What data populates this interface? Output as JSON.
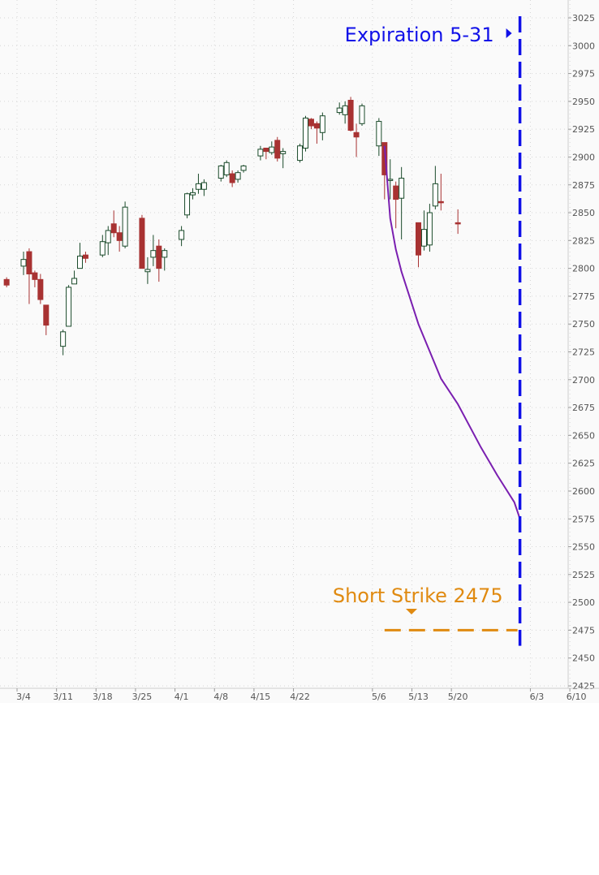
{
  "chart_data": {
    "type": "candlestick",
    "grid": true,
    "ylim": [
      2425,
      3025
    ],
    "y_ticks": [
      3025,
      3000,
      2975,
      2950,
      2925,
      2900,
      2875,
      2850,
      2825,
      2800,
      2775,
      2750,
      2725,
      2700,
      2675,
      2650,
      2625,
      2600,
      2575,
      2550,
      2525,
      2500,
      2475,
      2450,
      2425
    ],
    "x_tick_labels": [
      "3/4",
      "3/11",
      "3/18",
      "3/25",
      "4/1",
      "4/8",
      "4/15",
      "4/22",
      "5/6",
      "5/13",
      "5/20",
      "6/3",
      "6/10"
    ],
    "colors": {
      "up_candle": "#1a4a2a",
      "down_candle": "#a83232",
      "projection": "#7a1fb0",
      "expiration": "#1010e8",
      "short_strike": "#e08a10",
      "grid": "#d6d6d6"
    },
    "candles": [
      {
        "date": "3/1",
        "open": 2790,
        "high": 2792,
        "low": 2783,
        "close": 2785
      },
      {
        "date": "3/4",
        "open": 2802,
        "high": 2815,
        "low": 2794,
        "close": 2808
      },
      {
        "date": "3/5",
        "open": 2815,
        "high": 2818,
        "low": 2768,
        "close": 2795
      },
      {
        "date": "3/6",
        "open": 2796,
        "high": 2798,
        "low": 2783,
        "close": 2790
      },
      {
        "date": "3/7",
        "open": 2790,
        "high": 2795,
        "low": 2768,
        "close": 2772
      },
      {
        "date": "3/8",
        "open": 2767,
        "high": 2767,
        "low": 2740,
        "close": 2749
      },
      {
        "date": "3/11",
        "open": 2730,
        "high": 2745,
        "low": 2722,
        "close": 2743
      },
      {
        "date": "3/12",
        "open": 2748,
        "high": 2785,
        "low": 2748,
        "close": 2783
      },
      {
        "date": "3/13",
        "open": 2786,
        "high": 2798,
        "low": 2786,
        "close": 2791
      },
      {
        "date": "3/14",
        "open": 2800,
        "high": 2823,
        "low": 2800,
        "close": 2811
      },
      {
        "date": "3/15",
        "open": 2812,
        "high": 2815,
        "low": 2805,
        "close": 2809
      },
      {
        "date": "3/18",
        "open": 2812,
        "high": 2830,
        "low": 2810,
        "close": 2824
      },
      {
        "date": "3/19",
        "open": 2823,
        "high": 2838,
        "low": 2812,
        "close": 2834
      },
      {
        "date": "3/20",
        "open": 2840,
        "high": 2852,
        "low": 2828,
        "close": 2832
      },
      {
        "date": "3/21",
        "open": 2832,
        "high": 2838,
        "low": 2815,
        "close": 2825
      },
      {
        "date": "3/22",
        "open": 2820,
        "high": 2860,
        "low": 2818,
        "close": 2855
      },
      {
        "date": "3/25",
        "open": 2845,
        "high": 2848,
        "low": 2800,
        "close": 2800
      },
      {
        "date": "3/26",
        "open": 2797,
        "high": 2810,
        "low": 2786,
        "close": 2799
      },
      {
        "date": "3/27",
        "open": 2810,
        "high": 2830,
        "low": 2802,
        "close": 2816
      },
      {
        "date": "3/28",
        "open": 2820,
        "high": 2826,
        "low": 2788,
        "close": 2800
      },
      {
        "date": "3/29",
        "open": 2810,
        "high": 2818,
        "low": 2798,
        "close": 2816
      },
      {
        "date": "4/1",
        "open": 2826,
        "high": 2838,
        "low": 2820,
        "close": 2834
      },
      {
        "date": "4/2",
        "open": 2848,
        "high": 2868,
        "low": 2845,
        "close": 2867
      },
      {
        "date": "4/3",
        "open": 2866,
        "high": 2872,
        "low": 2862,
        "close": 2868
      },
      {
        "date": "4/4",
        "open": 2871,
        "high": 2885,
        "low": 2867,
        "close": 2876
      },
      {
        "date": "4/5",
        "open": 2871,
        "high": 2880,
        "low": 2865,
        "close": 2877
      },
      {
        "date": "4/8",
        "open": 2881,
        "high": 2893,
        "low": 2878,
        "close": 2892
      },
      {
        "date": "4/9",
        "open": 2884,
        "high": 2897,
        "low": 2882,
        "close": 2895
      },
      {
        "date": "4/10",
        "open": 2885,
        "high": 2888,
        "low": 2873,
        "close": 2877
      },
      {
        "date": "4/11",
        "open": 2880,
        "high": 2888,
        "low": 2877,
        "close": 2886
      },
      {
        "date": "4/12",
        "open": 2888,
        "high": 2893,
        "low": 2886,
        "close": 2892
      },
      {
        "date": "4/15",
        "open": 2901,
        "high": 2910,
        "low": 2897,
        "close": 2907
      },
      {
        "date": "4/16",
        "open": 2908,
        "high": 2908,
        "low": 2898,
        "close": 2905
      },
      {
        "date": "4/17",
        "open": 2904,
        "high": 2914,
        "low": 2902,
        "close": 2909
      },
      {
        "date": "4/18",
        "open": 2915,
        "high": 2918,
        "low": 2896,
        "close": 2899
      },
      {
        "date": "4/19",
        "open": 2903,
        "high": 2908,
        "low": 2890,
        "close": 2905
      },
      {
        "date": "4/22",
        "open": 2897,
        "high": 2912,
        "low": 2895,
        "close": 2910
      },
      {
        "date": "4/23",
        "open": 2908,
        "high": 2937,
        "low": 2905,
        "close": 2935
      },
      {
        "date": "4/24",
        "open": 2934,
        "high": 2935,
        "low": 2925,
        "close": 2928
      },
      {
        "date": "4/25",
        "open": 2930,
        "high": 2932,
        "low": 2912,
        "close": 2926
      },
      {
        "date": "4/26",
        "open": 2922,
        "high": 2940,
        "low": 2915,
        "close": 2937
      },
      {
        "date": "4/29",
        "open": 2940,
        "high": 2949,
        "low": 2938,
        "close": 2944
      },
      {
        "date": "4/30",
        "open": 2938,
        "high": 2950,
        "low": 2930,
        "close": 2946
      },
      {
        "date": "5/1",
        "open": 2951,
        "high": 2954,
        "low": 2923,
        "close": 2924
      },
      {
        "date": "5/2",
        "open": 2922,
        "high": 2930,
        "low": 2900,
        "close": 2918
      },
      {
        "date": "5/3",
        "open": 2930,
        "high": 2948,
        "low": 2928,
        "close": 2946
      },
      {
        "date": "5/6",
        "open": 2910,
        "high": 2935,
        "low": 2901,
        "close": 2932
      },
      {
        "date": "5/7",
        "open": 2913,
        "high": 2913,
        "low": 2862,
        "close": 2884
      },
      {
        "date": "5/8",
        "open": 2880,
        "high": 2898,
        "low": 2862,
        "close": 2880
      },
      {
        "date": "5/9",
        "open": 2874,
        "high": 2878,
        "low": 2836,
        "close": 2862
      },
      {
        "date": "5/10",
        "open": 2863,
        "high": 2891,
        "low": 2826,
        "close": 2881
      },
      {
        "date": "5/13",
        "open": 2841,
        "high": 2841,
        "low": 2801,
        "close": 2812
      },
      {
        "date": "5/14",
        "open": 2820,
        "high": 2852,
        "low": 2816,
        "close": 2835
      },
      {
        "date": "5/15",
        "open": 2821,
        "high": 2858,
        "low": 2815,
        "close": 2850
      },
      {
        "date": "5/16",
        "open": 2856,
        "high": 2892,
        "low": 2853,
        "close": 2876
      },
      {
        "date": "5/17",
        "open": 2860,
        "high": 2885,
        "low": 2852,
        "close": 2859
      },
      {
        "date": "5/20",
        "open": 2841,
        "high": 2853,
        "low": 2831,
        "close": 2840
      }
    ],
    "projection_path": [
      {
        "x": "5/7",
        "y": 2910
      },
      {
        "x": "5/8",
        "y": 2845
      },
      {
        "x": "5/9",
        "y": 2817
      },
      {
        "x": "5/10",
        "y": 2797
      },
      {
        "x": "5/13",
        "y": 2750
      },
      {
        "x": "5/17",
        "y": 2701
      },
      {
        "x": "5/20",
        "y": 2678
      },
      {
        "x": "5/24",
        "y": 2640
      },
      {
        "x": "5/27",
        "y": 2614
      },
      {
        "x": "5/30",
        "y": 2590
      },
      {
        "x": "5/31",
        "y": 2575
      }
    ],
    "expiration_line": {
      "x": "5/31",
      "label": "Expiration 5-31"
    },
    "short_strike_line": {
      "value": 2475,
      "label": "Short Strike 2475",
      "x_from": "5/7",
      "x_to": "5/31"
    }
  }
}
